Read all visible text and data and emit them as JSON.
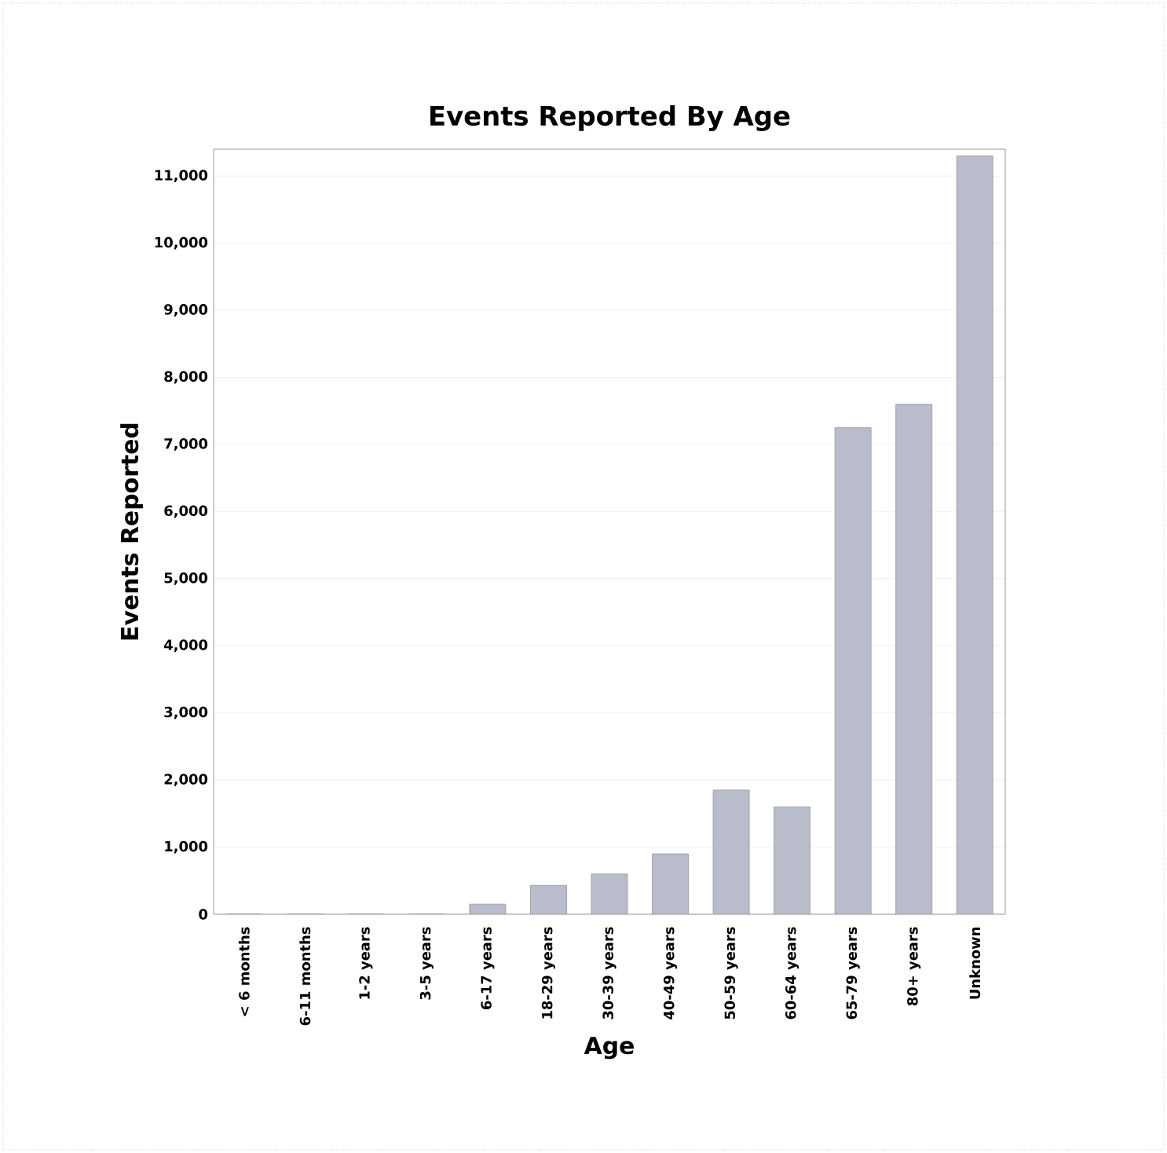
{
  "chart_data": {
    "type": "bar",
    "title": "Events Reported By Age",
    "xlabel": "Age",
    "ylabel": "Events Reported",
    "categories": [
      "< 6 months",
      "6-11 months",
      "1-2 years",
      "3-5 years",
      "6-17 years",
      "18-29 years",
      "30-39 years",
      "40-49 years",
      "50-59 years",
      "60-64 years",
      "65-79 years",
      "80+ years",
      "Unknown"
    ],
    "values": [
      0,
      0,
      0,
      0,
      150,
      430,
      600,
      900,
      1850,
      1600,
      7250,
      7600,
      11300
    ],
    "color": "#b8bccb",
    "ylim": [
      0,
      11400
    ],
    "yticks": [
      {
        "value": 0,
        "label": "0"
      },
      {
        "value": 1000,
        "label": "1,000"
      },
      {
        "value": 2000,
        "label": "2,000"
      },
      {
        "value": 3000,
        "label": "3,000"
      },
      {
        "value": 4000,
        "label": "4,000"
      },
      {
        "value": 5000,
        "label": "5,000"
      },
      {
        "value": 6000,
        "label": "6,000"
      },
      {
        "value": 7000,
        "label": "7,000"
      },
      {
        "value": 8000,
        "label": "8,000"
      },
      {
        "value": 9000,
        "label": "9,000"
      },
      {
        "value": 10000,
        "label": "10,000"
      },
      {
        "value": 11000,
        "label": "11,000"
      }
    ],
    "grid": "y"
  }
}
